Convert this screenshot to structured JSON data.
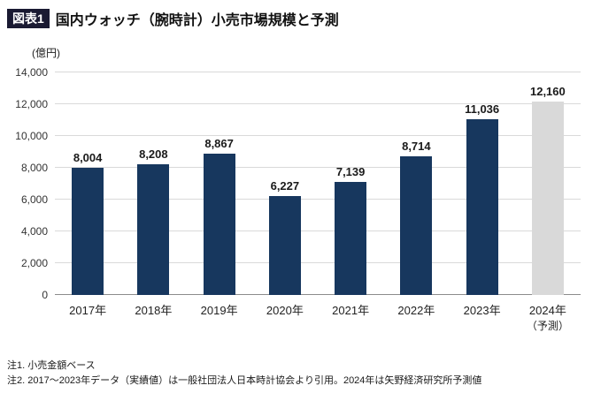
{
  "badge": "図表1",
  "title": "国内ウォッチ（腕時計）小売市場規模と予測",
  "notes": [
    "注1. 小売金額ベース",
    "注2. 2017～2023年データ（実績値）は一般社団法人日本時計協会より引用。2024年は矢野経済研究所予測値"
  ],
  "colors": {
    "bar": "#17375e",
    "forecast_bar": "#d9d9d9",
    "badge_bg": "#1a1a32",
    "gridline": "#d9d9d9",
    "axis_line": "#8c8c8c"
  },
  "chart_data": {
    "type": "bar",
    "title": "国内ウォッチ（腕時計）小売市場規模と予測",
    "ylabel": "(億円)",
    "xlabel": "",
    "categories": [
      "2017年",
      "2018年",
      "2019年",
      "2020年",
      "2021年",
      "2022年",
      "2023年",
      "2024年"
    ],
    "sub_labels": [
      "",
      "",
      "",
      "",
      "",
      "",
      "",
      "（予測）"
    ],
    "values": [
      8004,
      8208,
      8867,
      6227,
      7139,
      8714,
      11036,
      12160
    ],
    "value_labels": [
      "8,004",
      "8,208",
      "8,867",
      "6,227",
      "7,139",
      "8,714",
      "11,036",
      "12,160"
    ],
    "forecast_index": 7,
    "ylim": [
      0,
      14000
    ],
    "yticks": [
      0,
      2000,
      4000,
      6000,
      8000,
      10000,
      12000,
      14000
    ],
    "ytick_labels": [
      "0",
      "2,000",
      "4,000",
      "6,000",
      "8,000",
      "10,000",
      "12,000",
      "14,000"
    ],
    "grid": true,
    "legend": "none"
  }
}
